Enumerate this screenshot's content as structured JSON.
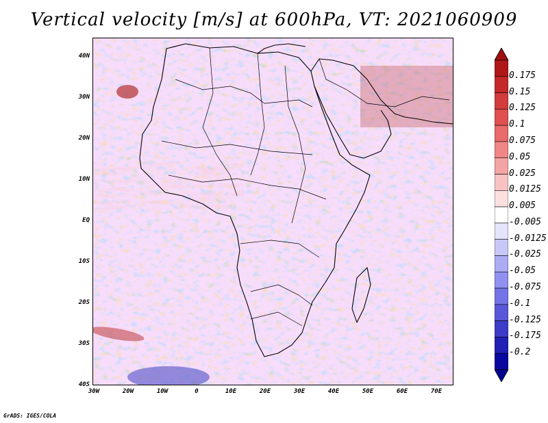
{
  "title": "Vertical velocity [m/s] at 600hPa, VT: 2021060909",
  "credit": "GrADS: IGES/COLA",
  "map": {
    "lat_labels": [
      "40N",
      "30N",
      "20N",
      "10N",
      "EQ",
      "10S",
      "20S",
      "30S",
      "40S"
    ],
    "lon_labels": [
      "30W",
      "20W",
      "10W",
      "0",
      "10E",
      "20E",
      "30E",
      "40E",
      "50E",
      "60E",
      "70E"
    ],
    "region": "Africa and Middle East",
    "field": "vertical velocity",
    "level": "600hPa"
  },
  "colorbar": {
    "labels": [
      "0.175",
      "0.15",
      "0.125",
      "0.1",
      "0.075",
      "0.05",
      "0.025",
      "0.0125",
      "0.005",
      "-0.005",
      "-0.0125",
      "-0.025",
      "-0.05",
      "-0.075",
      "-0.1",
      "-0.125",
      "-0.175",
      "-0.2"
    ],
    "colors": [
      "#b01818",
      "#c42828",
      "#d23c3c",
      "#e05050",
      "#e86a6a",
      "#f08686",
      "#f4a4a4",
      "#f8c2c2",
      "#fce0e0",
      "#ffffff",
      "#e4e4fc",
      "#c8c8f8",
      "#acacf4",
      "#9090f0",
      "#7474e6",
      "#5858d8",
      "#3c3cc8",
      "#2020b4",
      "#0808a0"
    ],
    "top_color": "#a01010",
    "bottom_color": "#000090"
  }
}
